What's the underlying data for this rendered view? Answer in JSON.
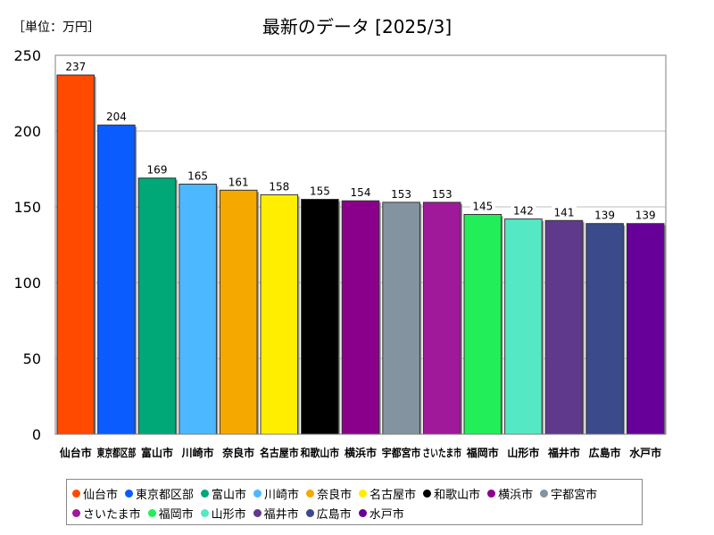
{
  "unit_label": "［単位：万円］",
  "chart_data": {
    "type": "bar",
    "title": "最新のデータ [2025/3]",
    "xlabel": "",
    "ylabel": "",
    "ylim": [
      0,
      250
    ],
    "yticks": [
      0,
      50,
      100,
      150,
      200,
      250
    ],
    "grid": true,
    "legend_position": "bottom",
    "categories": [
      "仙台市",
      "東京都区部",
      "富山市",
      "川崎市",
      "奈良市",
      "名古屋市",
      "和歌山市",
      "横浜市",
      "宇都宮市",
      "さいたま市",
      "福岡市",
      "山形市",
      "福井市",
      "広島市",
      "水戸市"
    ],
    "values": [
      237,
      204,
      169,
      165,
      161,
      158,
      155,
      154,
      153,
      153,
      145,
      142,
      141,
      139,
      139
    ],
    "colors": [
      "#ff4a00",
      "#0a5cff",
      "#00a878",
      "#4cb8ff",
      "#f5a800",
      "#ffee00",
      "#000000",
      "#8b008b",
      "#8394a0",
      "#a0199a",
      "#22ee5a",
      "#55e8c4",
      "#5f3a8c",
      "#3a4a8a",
      "#660099"
    ]
  }
}
